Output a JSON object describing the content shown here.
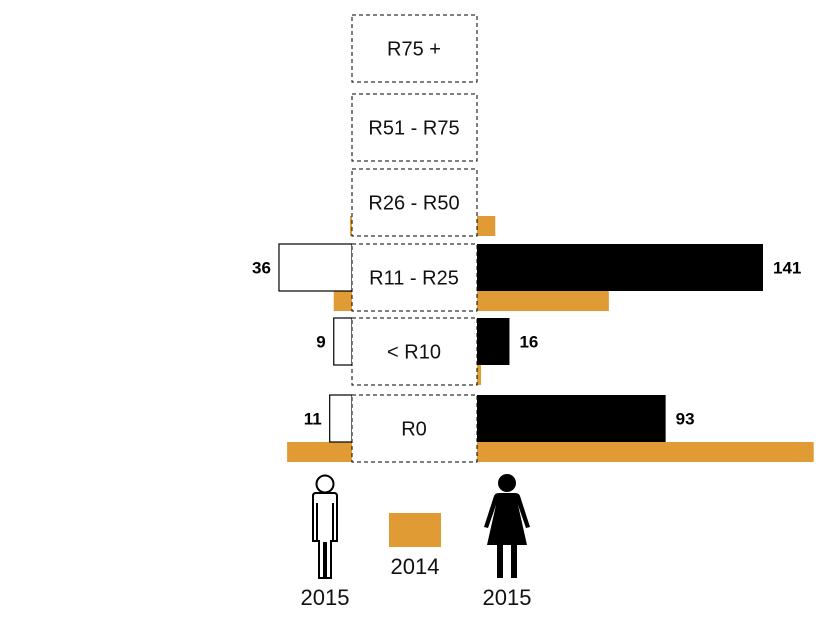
{
  "chart_data": {
    "type": "bar",
    "orientation": "horizontal",
    "layout": "back-to-back",
    "categories": [
      "R75 +",
      "R51 - R75",
      "R26 - R50",
      "R11 - R25",
      "< R10",
      "R0"
    ],
    "series": [
      {
        "name": "2015",
        "side": "left",
        "group": "male",
        "year": "2015",
        "values": [
          0,
          0,
          0,
          36,
          9,
          11
        ]
      },
      {
        "name": "2015",
        "side": "right",
        "group": "female",
        "year": "2015",
        "values": [
          0,
          0,
          0,
          141,
          16,
          93
        ]
      },
      {
        "name": "2014",
        "side": "left",
        "group": "male",
        "year": "2014",
        "values": [
          0,
          0,
          1,
          9,
          0,
          32
        ]
      },
      {
        "name": "2014",
        "side": "right",
        "group": "female",
        "year": "2014",
        "values": [
          0,
          0,
          9,
          65,
          2,
          166
        ]
      }
    ],
    "value_labels": {
      "left": [
        "",
        "",
        "",
        "36",
        "9",
        "11"
      ],
      "right": [
        "",
        "",
        "",
        "141",
        "16",
        "93"
      ]
    },
    "scale_max": 141,
    "legend": {
      "male_label": "2015",
      "female_label": "2015",
      "previous_label": "2014"
    },
    "colors": {
      "female_2015": "#000000",
      "male_2015": "#ffffff",
      "year_2014": "#e09b34",
      "outline": "#000000"
    },
    "grid": false
  }
}
